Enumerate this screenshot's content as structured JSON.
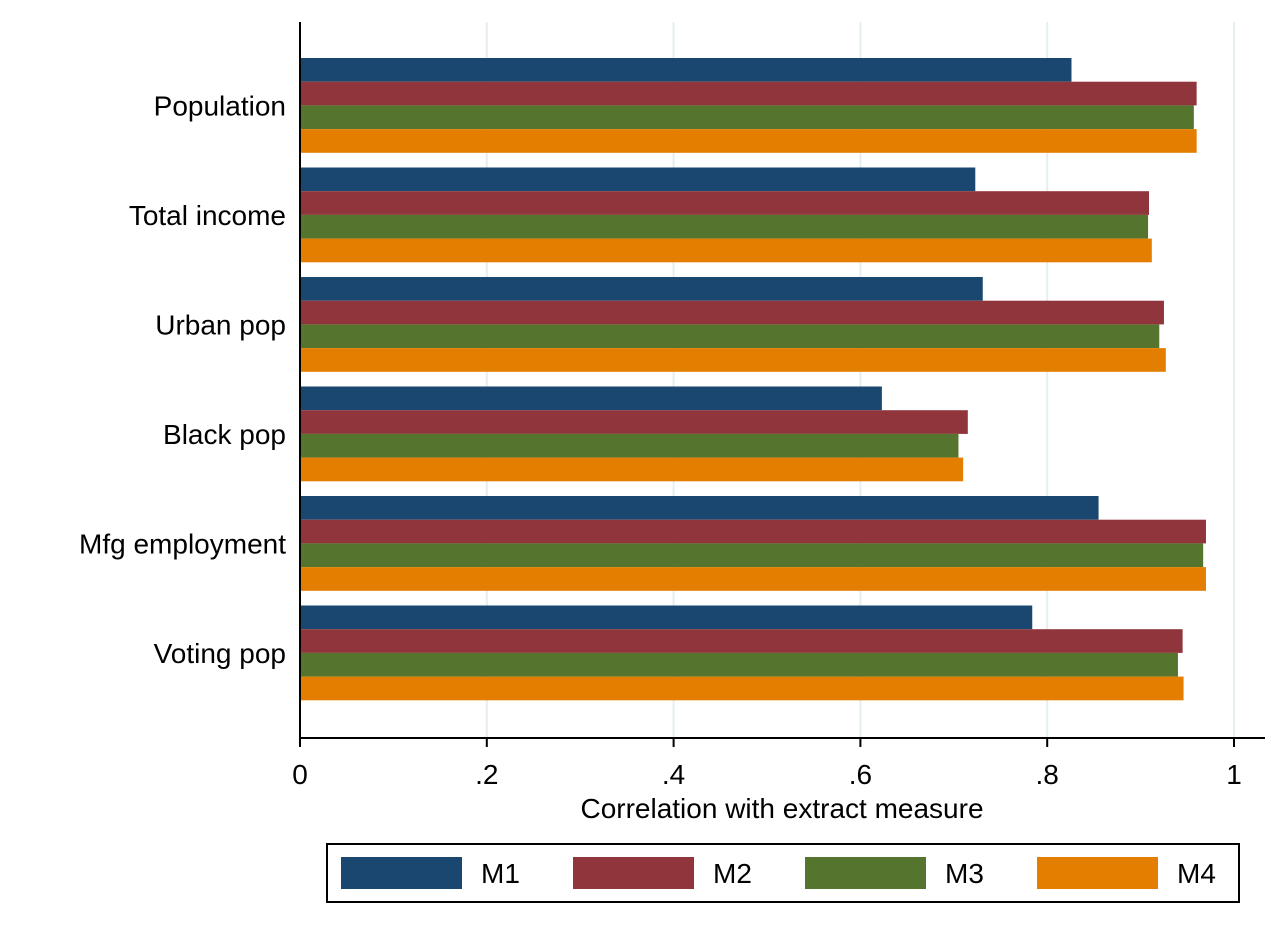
{
  "chart_data": {
    "type": "bar",
    "orientation": "horizontal",
    "categories": [
      "Population",
      "Total income",
      "Urban pop",
      "Black pop",
      "Mfg employment",
      "Voting pop"
    ],
    "series": [
      {
        "name": "M1",
        "color": "#1a476f",
        "values": [
          0.826,
          0.723,
          0.731,
          0.623,
          0.855,
          0.784
        ]
      },
      {
        "name": "M2",
        "color": "#90353b",
        "values": [
          0.96,
          0.909,
          0.925,
          0.715,
          0.97,
          0.945
        ]
      },
      {
        "name": "M3",
        "color": "#55752f",
        "values": [
          0.957,
          0.908,
          0.92,
          0.705,
          0.967,
          0.94
        ]
      },
      {
        "name": "M4",
        "color": "#e37e00",
        "values": [
          0.96,
          0.912,
          0.927,
          0.71,
          0.97,
          0.946
        ]
      }
    ],
    "xlabel": "Correlation with extract measure",
    "ylabel": "",
    "xlim": [
      0,
      1.035
    ],
    "xticks": [
      0,
      0.2,
      0.4,
      0.6,
      0.8,
      1
    ],
    "xtick_labels": [
      "0",
      ".2",
      ".4",
      ".6",
      ".8",
      "1"
    ],
    "grid": "vertical",
    "legend_position": "bottom"
  }
}
